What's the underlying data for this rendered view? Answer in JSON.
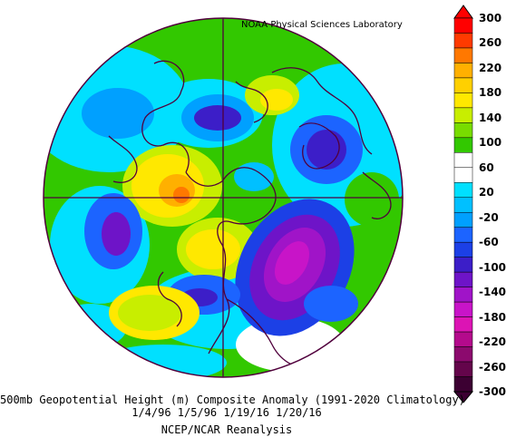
{
  "map": {
    "credit": "NOAA Physical Sciences Laboratory",
    "caption_line1": "500mb Geopotential Height (m) Composite Anomaly (1991-2020 Climatology)",
    "caption_line2": "1/4/96 1/5/96 1/19/16 1/20/16",
    "caption_line3": "NCEP/NCAR Reanalysis",
    "projection": "north-polar-stereographic"
  },
  "colorbar": {
    "ticks": [
      "300",
      "260",
      "220",
      "180",
      "140",
      "100",
      "60",
      "20",
      "-20",
      "-60",
      "-100",
      "-140",
      "-180",
      "-220",
      "-260",
      "-300"
    ],
    "colors": [
      "#ff0000",
      "#ff3a00",
      "#ff7800",
      "#ffb000",
      "#ffd000",
      "#ffe800",
      "#c8ee00",
      "#78dc00",
      "#32c800",
      "#ffffff",
      "#ffffff",
      "#00e0ff",
      "#00c0ff",
      "#00a0ff",
      "#1c64ff",
      "#1c40e6",
      "#3c1ec8",
      "#6e14c8",
      "#a014c8",
      "#c814c8",
      "#dc14b4",
      "#b40a8c",
      "#8c0a6e",
      "#64054b",
      "#3c0032"
    ]
  },
  "anomaly_fields": [
    {
      "name": "anomaly-positive-pacific-ridge",
      "color": "#32c800"
    },
    {
      "name": "anomaly-negative-eastern-canada",
      "color": "#a014c8"
    },
    {
      "name": "anomaly-negative-eurasia",
      "color": "#1c40e6"
    }
  ]
}
